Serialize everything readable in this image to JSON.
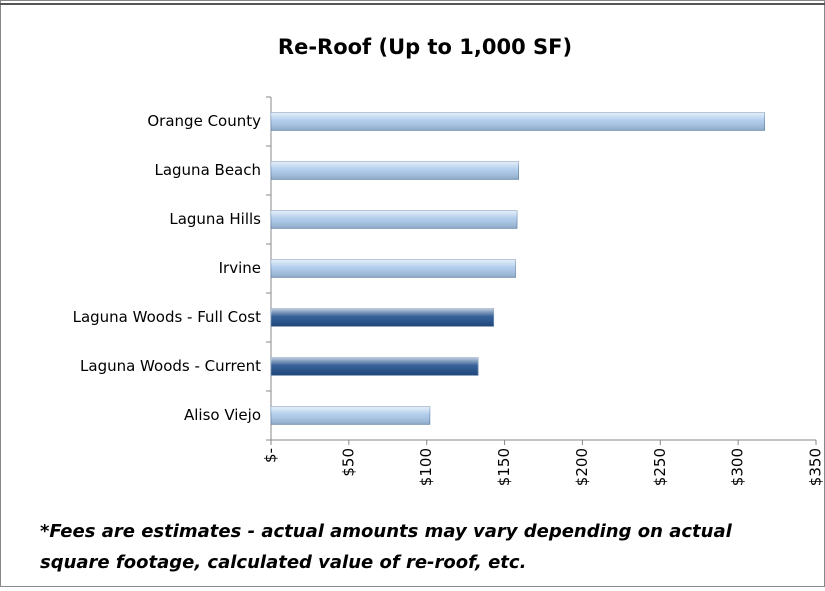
{
  "chart_data": {
    "type": "bar",
    "orientation": "horizontal",
    "title": "Re-Roof (Up to 1,000 SF)",
    "categories": [
      "Orange County",
      "Laguna Beach",
      "Laguna Hills",
      "Irvine",
      "Laguna Woods - Full Cost",
      "Laguna Woods - Current",
      "Aliso Viejo"
    ],
    "values": [
      317,
      159,
      158,
      157,
      143,
      133,
      102
    ],
    "colors": [
      "#a9c8ea",
      "#a9c8ea",
      "#a9c8ea",
      "#a9c8ea",
      "#1f4e8c",
      "#1f4e8c",
      "#a9c8ea"
    ],
    "xlim": [
      0,
      350
    ],
    "xticks": [
      {
        "value": 0,
        "label": "$-"
      },
      {
        "value": 50,
        "label": "$50"
      },
      {
        "value": 100,
        "label": "$100"
      },
      {
        "value": 150,
        "label": "$150"
      },
      {
        "value": 200,
        "label": "$200"
      },
      {
        "value": 250,
        "label": "$250"
      },
      {
        "value": 300,
        "label": "$300"
      },
      {
        "value": 350,
        "label": "$350"
      }
    ],
    "grid": false,
    "annotations": [
      "*Fees are estimates - actual amounts may vary depending on actual",
      "square footage, calculated value of re-roof, etc."
    ]
  }
}
